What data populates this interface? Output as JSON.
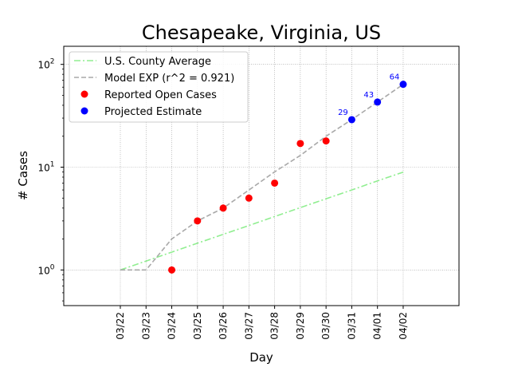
{
  "chart_data": {
    "type": "line",
    "title": "Chesapeake, Virginia, US",
    "xlabel": "Day",
    "ylabel": "# Cases",
    "yscale": "log",
    "ylim": [
      0.45,
      150
    ],
    "categories": [
      "03/22",
      "03/23",
      "03/24",
      "03/25",
      "03/26",
      "03/27",
      "03/28",
      "03/29",
      "03/30",
      "03/31",
      "04/01",
      "04/02"
    ],
    "y_ticks": [
      {
        "value": 1,
        "base": "10",
        "exp": "0"
      },
      {
        "value": 10,
        "base": "10",
        "exp": "1"
      },
      {
        "value": 100,
        "base": "10",
        "exp": "2"
      }
    ],
    "grid": true,
    "legend_position": "top-left",
    "series": [
      {
        "name": "U.S. County Average",
        "style": "dashdot",
        "color": "#90ee90",
        "points": [
          [
            "03/22",
            1
          ],
          [
            "03/23",
            1.22
          ],
          [
            "03/24",
            1.49
          ],
          [
            "03/25",
            1.82
          ],
          [
            "03/26",
            2.22
          ],
          [
            "03/27",
            2.71
          ],
          [
            "03/28",
            3.31
          ],
          [
            "03/29",
            4.04
          ],
          [
            "03/30",
            4.93
          ],
          [
            "03/31",
            6.0
          ],
          [
            "04/01",
            7.35
          ],
          [
            "04/02",
            8.95
          ]
        ]
      },
      {
        "name": "Model EXP (r^2 = 0.921)",
        "style": "dashed",
        "color": "#a9a9a9",
        "points": [
          [
            "03/22",
            1
          ],
          [
            "03/23",
            1
          ],
          [
            "03/24",
            2
          ],
          [
            "03/25",
            3
          ],
          [
            "03/26",
            4
          ],
          [
            "03/27",
            6
          ],
          [
            "03/28",
            9
          ],
          [
            "03/29",
            13
          ],
          [
            "03/30",
            20
          ],
          [
            "03/31",
            29
          ],
          [
            "04/01",
            43
          ],
          [
            "04/02",
            64
          ]
        ]
      },
      {
        "name": "Reported Open Cases",
        "style": "points",
        "color": "#ff0000",
        "points": [
          [
            "03/24",
            1
          ],
          [
            "03/25",
            3
          ],
          [
            "03/26",
            4
          ],
          [
            "03/27",
            5
          ],
          [
            "03/28",
            7
          ],
          [
            "03/29",
            17
          ],
          [
            "03/30",
            18
          ]
        ]
      },
      {
        "name": "Projected Estimate",
        "style": "points",
        "color": "#0000ff",
        "points": [
          [
            "03/31",
            29
          ],
          [
            "04/01",
            43
          ],
          [
            "04/02",
            64
          ]
        ],
        "labels": [
          "29",
          "43",
          "64"
        ]
      }
    ]
  }
}
